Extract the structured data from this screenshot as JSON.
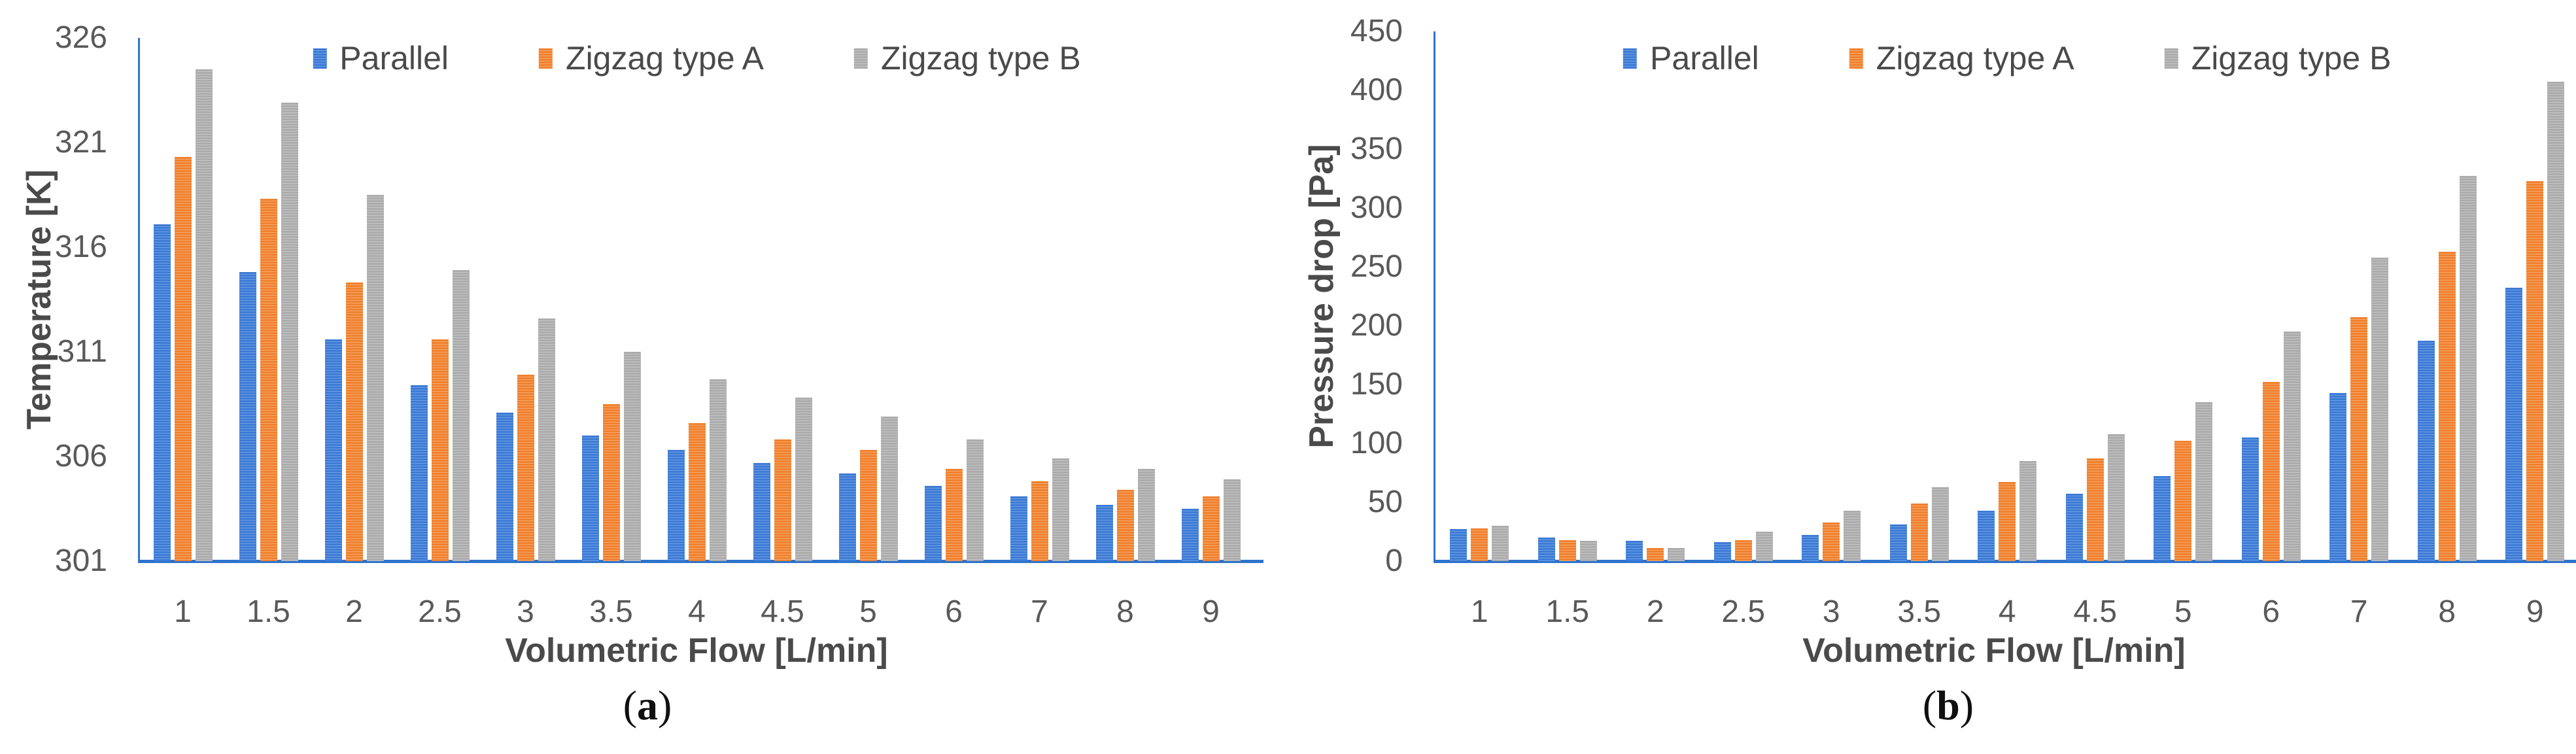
{
  "colors": {
    "axis_line": "#2E74CC",
    "tick_text": "#595959",
    "axis_title_text": "#4A4A4A",
    "caption_text": "#101010"
  },
  "chart_data": [
    {
      "id": "a",
      "type": "bar",
      "xlabel": "Volumetric Flow [L/min]",
      "ylabel": "Temperature [K]",
      "caption_open": "(",
      "caption_letter": "a",
      "caption_close": ")",
      "categories": [
        "1",
        "1.5",
        "2",
        "2.5",
        "3",
        "3.5",
        "4",
        "4.5",
        "5",
        "6",
        "7",
        "8",
        "9"
      ],
      "ylim": [
        301,
        326
      ],
      "yticks": [
        326,
        321,
        316,
        311,
        306,
        301
      ],
      "grid": false,
      "legend_position": "top",
      "series": [
        {
          "name": "Parallel",
          "color": "#3D7BD5",
          "stripe": "#6FA0E6",
          "values": [
            317.1,
            314.8,
            311.6,
            309.4,
            308.1,
            307.0,
            306.3,
            305.7,
            305.2,
            304.6,
            304.1,
            303.7,
            303.5
          ]
        },
        {
          "name": "Zigzag type A",
          "color": "#F0812F",
          "stripe": "#F6A96C",
          "values": [
            320.3,
            318.3,
            314.3,
            311.6,
            309.9,
            308.5,
            307.6,
            306.8,
            306.3,
            305.4,
            304.8,
            304.4,
            304.1
          ]
        },
        {
          "name": "Zigzag type B",
          "color": "#ACACAC",
          "stripe": "#C6C6C6",
          "values": [
            324.5,
            322.9,
            318.5,
            314.9,
            312.6,
            311.0,
            309.7,
            308.8,
            307.9,
            306.8,
            305.9,
            305.4,
            304.9
          ]
        }
      ]
    },
    {
      "id": "b",
      "type": "bar",
      "xlabel": "Volumetric Flow [L/min]",
      "ylabel": "Pressure drop [Pa]",
      "caption_open": "(",
      "caption_letter": "b",
      "caption_close": ")",
      "categories": [
        "1",
        "1.5",
        "2",
        "2.5",
        "3",
        "3.5",
        "4",
        "4.5",
        "5",
        "6",
        "7",
        "8",
        "9"
      ],
      "ylim": [
        0,
        450
      ],
      "yticks": [
        450,
        400,
        350,
        300,
        250,
        200,
        150,
        100,
        50,
        0
      ],
      "grid": false,
      "legend_position": "top",
      "series": [
        {
          "name": "Parallel",
          "color": "#3D7BD5",
          "stripe": "#6FA0E6",
          "values": [
            27,
            20,
            17,
            16,
            22,
            31,
            43,
            57,
            72,
            105,
            143,
            187,
            232
          ]
        },
        {
          "name": "Zigzag type A",
          "color": "#F0812F",
          "stripe": "#F6A96C",
          "values": [
            28,
            18,
            11,
            18,
            33,
            49,
            67,
            87,
            102,
            152,
            207,
            263,
            323
          ]
        },
        {
          "name": "Zigzag type B",
          "color": "#ACACAC",
          "stripe": "#C6C6C6",
          "values": [
            30,
            17,
            11,
            25,
            43,
            63,
            85,
            108,
            135,
            195,
            258,
            327,
            407
          ]
        }
      ]
    }
  ]
}
